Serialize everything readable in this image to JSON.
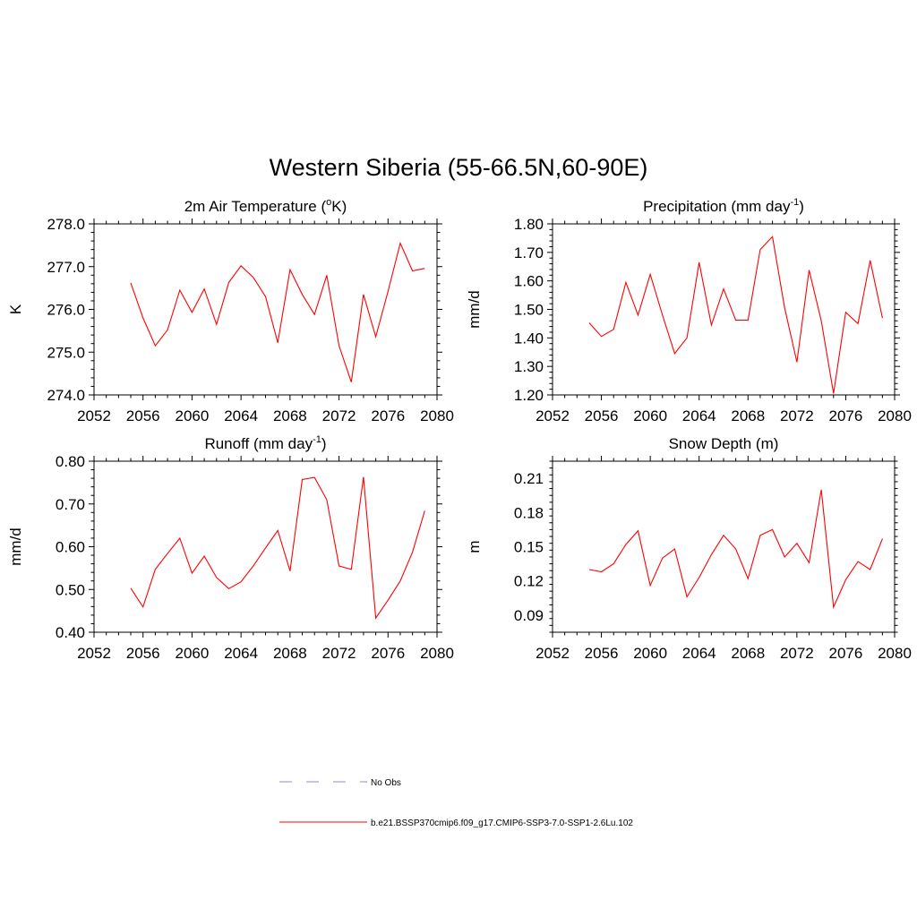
{
  "figure": {
    "title": "Western Siberia (55-66.5N,60-90E)"
  },
  "legend": {
    "placement": "bottom-center",
    "entries": [
      {
        "label": "No Obs",
        "style": "dashed",
        "color": "#a0a0e0"
      },
      {
        "label": "b.e21.BSSP370cmip6.f09_g17.CMIP6-SSP3-7.0-SSP1-2.6Lu.102",
        "style": "solid",
        "color": "#ff0000"
      }
    ]
  },
  "chart_data": [
    {
      "type": "line",
      "title": "2m Air Temperature (",
      "title_sup": "o",
      "title_tail": "K)",
      "xlabel": "",
      "ylabel": "K",
      "xlim": [
        2052,
        2080
      ],
      "ylim": [
        274.0,
        278.0
      ],
      "xticks": [
        2052,
        2056,
        2060,
        2064,
        2068,
        2072,
        2076,
        2080
      ],
      "yticks": [
        274.0,
        275.0,
        276.0,
        277.0,
        278.0
      ],
      "ytick_decimals": 1,
      "line_color": "#ff0000",
      "x": [
        2055,
        2056,
        2057,
        2058,
        2059,
        2060,
        2061,
        2062,
        2063,
        2064,
        2065,
        2066,
        2067,
        2068,
        2069,
        2070,
        2071,
        2072,
        2073,
        2074,
        2075,
        2076,
        2077,
        2078,
        2079
      ],
      "y": [
        276.62,
        275.8,
        275.15,
        275.52,
        276.45,
        275.93,
        276.48,
        275.65,
        276.63,
        277.02,
        276.75,
        276.3,
        275.22,
        276.93,
        276.35,
        275.88,
        276.8,
        275.15,
        274.3,
        276.35,
        275.36,
        276.42,
        277.55,
        276.9,
        276.96
      ]
    },
    {
      "type": "line",
      "title": "Precipitation (mm day",
      "title_sup": "-1",
      "title_tail": ")",
      "xlabel": "",
      "ylabel": "mm/d",
      "xlim": [
        2052,
        2080
      ],
      "ylim": [
        1.2,
        1.8
      ],
      "xticks": [
        2052,
        2056,
        2060,
        2064,
        2068,
        2072,
        2076,
        2080
      ],
      "yticks": [
        1.2,
        1.3,
        1.4,
        1.5,
        1.6,
        1.7,
        1.8
      ],
      "ytick_decimals": 2,
      "line_color": "#ff0000",
      "x": [
        2055,
        2056,
        2057,
        2058,
        2059,
        2060,
        2061,
        2062,
        2063,
        2064,
        2065,
        2066,
        2067,
        2068,
        2069,
        2070,
        2071,
        2072,
        2073,
        2074,
        2075,
        2076,
        2077,
        2078,
        2079
      ],
      "y": [
        1.453,
        1.405,
        1.43,
        1.595,
        1.48,
        1.623,
        1.48,
        1.345,
        1.4,
        1.665,
        1.445,
        1.572,
        1.462,
        1.462,
        1.71,
        1.755,
        1.505,
        1.315,
        1.638,
        1.46,
        1.205,
        1.49,
        1.45,
        1.672,
        1.47
      ]
    },
    {
      "type": "line",
      "title": "Runoff (mm day",
      "title_sup": "-1",
      "title_tail": ")",
      "xlabel": "",
      "ylabel": "mm/d",
      "xlim": [
        2052,
        2080
      ],
      "ylim": [
        0.4,
        0.8
      ],
      "xticks": [
        2052,
        2056,
        2060,
        2064,
        2068,
        2072,
        2076,
        2080
      ],
      "yticks": [
        0.4,
        0.5,
        0.6,
        0.7,
        0.8
      ],
      "ytick_decimals": 2,
      "line_color": "#ff0000",
      "x": [
        2055,
        2056,
        2057,
        2058,
        2059,
        2060,
        2061,
        2062,
        2063,
        2064,
        2065,
        2066,
        2067,
        2068,
        2069,
        2070,
        2071,
        2072,
        2073,
        2074,
        2075,
        2076,
        2077,
        2078,
        2079
      ],
      "y": [
        0.503,
        0.459,
        0.547,
        0.584,
        0.62,
        0.538,
        0.578,
        0.528,
        0.502,
        0.518,
        0.555,
        0.597,
        0.638,
        0.543,
        0.757,
        0.762,
        0.71,
        0.555,
        0.547,
        0.763,
        0.433,
        0.475,
        0.52,
        0.587,
        0.684
      ]
    },
    {
      "type": "line",
      "title": "Snow Depth (m)",
      "title_sup": "",
      "title_tail": "",
      "xlabel": "",
      "ylabel": "m",
      "xlim": [
        2052,
        2080
      ],
      "ylim": [
        0.075,
        0.225
      ],
      "xticks": [
        2052,
        2056,
        2060,
        2064,
        2068,
        2072,
        2076,
        2080
      ],
      "yticks": [
        0.09,
        0.12,
        0.15,
        0.18,
        0.21
      ],
      "ytick_decimals": 2,
      "line_color": "#ff0000",
      "x": [
        2055,
        2056,
        2057,
        2058,
        2059,
        2060,
        2061,
        2062,
        2063,
        2064,
        2065,
        2066,
        2067,
        2068,
        2069,
        2070,
        2071,
        2072,
        2073,
        2074,
        2075,
        2076,
        2077,
        2078,
        2079
      ],
      "y": [
        0.13,
        0.128,
        0.135,
        0.152,
        0.164,
        0.116,
        0.14,
        0.148,
        0.106,
        0.123,
        0.143,
        0.16,
        0.148,
        0.122,
        0.16,
        0.165,
        0.141,
        0.153,
        0.136,
        0.2,
        0.097,
        0.121,
        0.137,
        0.13,
        0.157
      ]
    }
  ]
}
